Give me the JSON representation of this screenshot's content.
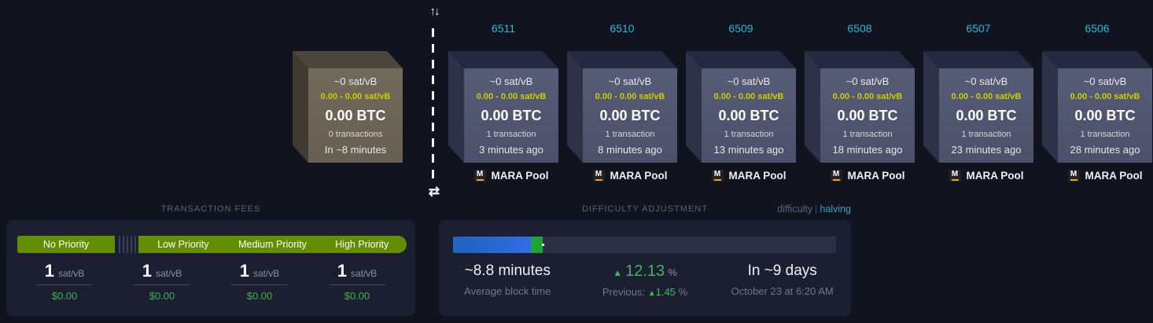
{
  "colors": {
    "accent-cyan": "#29b7da",
    "yellow": "#c8d000",
    "green": "#3fb954",
    "fee-green": "#628e03",
    "usd-green": "#3bb34a",
    "bar-blue-start": "#1e63be",
    "bar-blue-end": "#306be4",
    "bar-green": "#1fa43a"
  },
  "separator": {
    "top_icon": "↑↓",
    "bottom_icon": "⇄"
  },
  "blocks": {
    "pending": {
      "feerate": "~0 sat/vB",
      "fee_range": "0.00 - 0.00 sat/vB",
      "total": "0.00 BTC",
      "tx_count": "0 transactions",
      "eta": "In ~8 minutes"
    },
    "mined": [
      {
        "height": "6511",
        "feerate": "~0 sat/vB",
        "fee_range": "0.00 - 0.00 sat/vB",
        "total": "0.00 BTC",
        "tx_count": "1 transaction",
        "time": "3 minutes ago",
        "pool_initial": "M",
        "pool_name": "MARA Pool"
      },
      {
        "height": "6510",
        "feerate": "~0 sat/vB",
        "fee_range": "0.00 - 0.00 sat/vB",
        "total": "0.00 BTC",
        "tx_count": "1 transaction",
        "time": "8 minutes ago",
        "pool_initial": "M",
        "pool_name": "MARA Pool"
      },
      {
        "height": "6509",
        "feerate": "~0 sat/vB",
        "fee_range": "0.00 - 0.00 sat/vB",
        "total": "0.00 BTC",
        "tx_count": "1 transaction",
        "time": "13 minutes ago",
        "pool_initial": "M",
        "pool_name": "MARA Pool"
      },
      {
        "height": "6508",
        "feerate": "~0 sat/vB",
        "fee_range": "0.00 - 0.00 sat/vB",
        "total": "0.00 BTC",
        "tx_count": "1 transaction",
        "time": "18 minutes ago",
        "pool_initial": "M",
        "pool_name": "MARA Pool"
      },
      {
        "height": "6507",
        "feerate": "~0 sat/vB",
        "fee_range": "0.00 - 0.00 sat/vB",
        "total": "0.00 BTC",
        "tx_count": "1 transaction",
        "time": "23 minutes ago",
        "pool_initial": "M",
        "pool_name": "MARA Pool"
      },
      {
        "height": "6506",
        "feerate": "~0 sat/vB",
        "fee_range": "0.00 - 0.00 sat/vB",
        "total": "0.00 BTC",
        "tx_count": "1 transaction",
        "time": "28 minutes ago",
        "pool_initial": "M",
        "pool_name": "MARA Pool"
      }
    ]
  },
  "fees": {
    "title": "TRANSACTION FEES",
    "tiers": [
      {
        "label": "No Priority",
        "value": "1",
        "unit": "sat/vB",
        "usd": "$0.00"
      },
      {
        "label": "Low Priority",
        "value": "1",
        "unit": "sat/vB",
        "usd": "$0.00"
      },
      {
        "label": "Medium Priority",
        "value": "1",
        "unit": "sat/vB",
        "usd": "$0.00"
      },
      {
        "label": "High Priority",
        "value": "1",
        "unit": "sat/vB",
        "usd": "$0.00"
      }
    ]
  },
  "difficulty": {
    "title": "DIFFICULTY ADJUSTMENT",
    "links": {
      "difficulty": "difficulty",
      "divider": "|",
      "halving": "halving"
    },
    "progress": {
      "blue_percent": 20.4,
      "green_percent": 3.1,
      "dot_percent": 23.2
    },
    "average_block_time": {
      "value": "~8.8 minutes",
      "label": "Average block time"
    },
    "change": {
      "arrow": "▲",
      "value": "12.13",
      "unit": "%"
    },
    "previous": {
      "label": "Previous:",
      "arrow": "▲",
      "value": "1.45",
      "unit": "%"
    },
    "retarget": {
      "value": "In ~9 days",
      "date": "October 23 at 6:20 AM"
    }
  }
}
